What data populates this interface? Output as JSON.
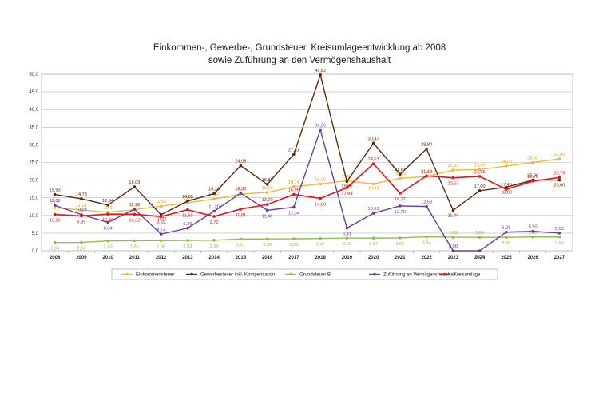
{
  "chart_data": {
    "type": "line",
    "title": "Einkommen-, Gewerbe-, Grundsteuer, Kreisumlageentwicklung ab 2008",
    "subtitle": "sowie Zuführung an den Vermögenshaushalt",
    "xlabel": "",
    "ylabel": "",
    "ylim": [
      0,
      50
    ],
    "y_ticks": [
      "0,0",
      "5,0",
      "10,0",
      "15,0",
      "20,0",
      "25,0",
      "30,0",
      "35,0",
      "40,0",
      "45,0",
      "50,0"
    ],
    "grid": true,
    "legend_position": "bottom",
    "categories": [
      "2008",
      "2009",
      "2010",
      "2011",
      "2012",
      "2013",
      "2014",
      "2015",
      "2016",
      "2017",
      "2018",
      "2019",
      "2020",
      "2021",
      "2022",
      "2023",
      "2024",
      "2025",
      "2026",
      "2027"
    ],
    "series": [
      {
        "name": "Einkommensteuer",
        "color": "#f0b93a",
        "values": [
          12.2,
          11.54,
          10.9,
          11.65,
          12.62,
          13.6,
          14.67,
          16.07,
          16.5,
          18.14,
          18.9,
          19.82,
          18.93,
          20.53,
          21.0,
          22.83,
          23.0,
          24.0,
          25.0,
          26.0
        ],
        "labels": [
          "12,2",
          "11,54",
          "10,9",
          "11,65",
          "12,62",
          "13,6",
          "14,67",
          "16,07",
          "16,50",
          "18,14",
          "18,90",
          "19,82",
          "18,93",
          "20,53",
          "21,00",
          "22,83",
          "23,00",
          "24,00",
          "25,00",
          "26,00"
        ]
      },
      {
        "name": "Gewerbesteuer inkl. Kompensation",
        "color": "#5b2a0e",
        "values": [
          15.93,
          14.73,
          12.94,
          18.09,
          10.22,
          14.05,
          16.2,
          24.08,
          18.8,
          27.31,
          49.82,
          19.6,
          30.47,
          21.67,
          28.84,
          11.44,
          17.0,
          18.0,
          20.0,
          20.0
        ],
        "labels": [
          "15,93",
          "14,73",
          "12,94",
          "18,09",
          "10,22",
          "14,05",
          "16,20",
          "24,08",
          "18,80",
          "27,31",
          "49,82",
          "19,60",
          "30,47",
          "21,67",
          "28,84",
          "11,44",
          "17,00",
          "18,00",
          "20,00",
          "20,00"
        ]
      },
      {
        "name": "Grundsteuer B",
        "color": "#8fbf4c",
        "values": [
          2.34,
          2.37,
          2.8,
          2.85,
          2.88,
          2.93,
          2.99,
          3.31,
          3.36,
          3.39,
          3.47,
          3.6,
          3.57,
          3.65,
          3.94,
          3.83,
          3.8,
          3.8,
          3.9,
          3.9
        ],
        "labels": [
          "2,34",
          "2,37",
          "2,80",
          "2,85",
          "2,88",
          "2,93",
          "2,99",
          "3,31",
          "3,36",
          "3,39",
          "3,47",
          "3,60",
          "3,57",
          "3,65",
          "3,94",
          "3,83",
          "3,80",
          "3,80",
          "3,90",
          "3,90"
        ]
      },
      {
        "name": "Zuführung an Vermögenshaushalt",
        "color": "#6a3d9a",
        "values": [
          12.86,
          10.24,
          8.04,
          11.75,
          4.72,
          6.39,
          11.2,
          16.3,
          11.46,
          12.34,
          34.26,
          6.41,
          10.63,
          12.7,
          12.53,
          0.0,
          0.0,
          5.28,
          5.5,
          5.03
        ],
        "labels": [
          "12,86",
          "10,24",
          "8,04",
          "11,75",
          "4,72",
          "6,39",
          "11,20",
          "16,30",
          "11,46",
          "12,34",
          "34,26",
          "6,41",
          "10,63",
          "12,70",
          "12,53",
          "0,00",
          "0,00",
          "5,28",
          "5,50",
          "5,03"
        ]
      },
      {
        "name": "Kreisumlage",
        "color": "#e8141b",
        "values": [
          10.29,
          9.85,
          10.38,
          10.33,
          9.69,
          11.6,
          9.72,
          11.81,
          13.09,
          15.96,
          14.83,
          17.84,
          24.63,
          16.27,
          21.19,
          20.67,
          21.05,
          17.4,
          19.7,
          20.75
        ],
        "labels": [
          "10,29",
          "9,85",
          "10,38",
          "10,33",
          "9,69",
          "11,60",
          "9,72",
          "11,81",
          "13,09",
          "15,96",
          "14,83",
          "17,84",
          "24,63",
          "16,27",
          "21,19",
          "20,67",
          "21,05",
          "17,40",
          "19,70",
          "20,75"
        ]
      }
    ]
  }
}
